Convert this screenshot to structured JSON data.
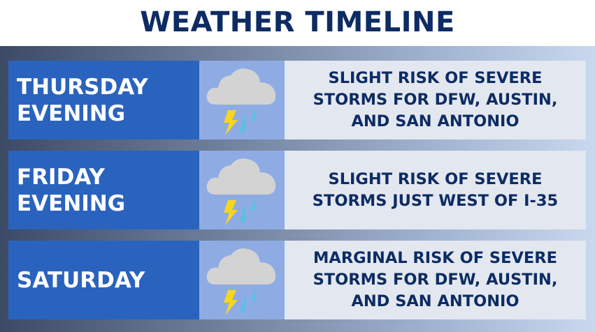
{
  "title": "WEATHER TIMELINE",
  "rows": [
    {
      "day": "THURSDAY\nEVENING",
      "icon": "thunderstorm-icon",
      "text": "SLIGHT RISK OF SEVERE\nSTORMS FOR DFW, AUSTIN,\nAND SAN ANTONIO"
    },
    {
      "day": "FRIDAY\nEVENING",
      "icon": "thunderstorm-icon",
      "text": "SLIGHT RISK OF SEVERE\nSTORMS JUST WEST OF I-35"
    },
    {
      "day": "SATURDAY",
      "icon": "thunderstorm-icon",
      "text": "MARGINAL RISK OF SEVERE\nSTORMS FOR DFW, AUSTIN,\nAND SAN ANTONIO"
    }
  ],
  "colors": {
    "title": "#0d2c63",
    "day_panel": "#2a63bd",
    "icon_panel": "#8eace3",
    "text_panel": "#e3e7ef"
  }
}
